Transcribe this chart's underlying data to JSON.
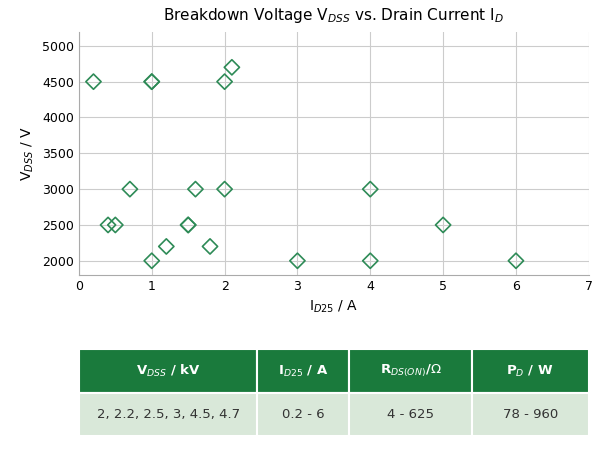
{
  "title": "Breakdown Voltage V$_{DSS}$ vs. Drain Current I$_D$",
  "title_plain": "Breakdown Voltage V",
  "xlabel": "I$_{D25}$ / A",
  "ylabel": "V$_{DSS}$ / V",
  "scatter_x": [
    0.2,
    0.4,
    0.5,
    0.7,
    1.0,
    1.0,
    1.0,
    1.2,
    1.5,
    1.5,
    1.6,
    1.8,
    2.0,
    2.0,
    2.1,
    3.0,
    4.0,
    4.0,
    5.0,
    6.0
  ],
  "scatter_y": [
    4500,
    2500,
    2500,
    3000,
    2000,
    4500,
    4500,
    2200,
    2500,
    2500,
    3000,
    2200,
    4500,
    3000,
    4700,
    2000,
    3000,
    2000,
    2500,
    2000
  ],
  "marker_color": "#2e8b57",
  "marker_size": 60,
  "xlim": [
    0,
    7
  ],
  "ylim": [
    1800,
    5200
  ],
  "xticks": [
    0,
    1,
    2,
    3,
    4,
    5,
    6,
    7
  ],
  "yticks": [
    2000,
    2500,
    3000,
    3500,
    4000,
    4500,
    5000
  ],
  "grid_color": "#cccccc",
  "background_color": "#ffffff",
  "table_header_bg": "#1a7a3c",
  "table_header_fg": "#ffffff",
  "table_row_bg": "#d9e8d9",
  "table_row_fg": "#333333",
  "table_headers": [
    "V$_{DSS}$ / kV",
    "I$_{D25}$ / A",
    "R$_{DS(ON)}$/$\\Omega$",
    "P$_D$ / W"
  ],
  "table_values": [
    "2, 2.2, 2.5, 3, 4.5, 4.7",
    "0.2 - 6",
    "4 - 625",
    "78 - 960"
  ]
}
